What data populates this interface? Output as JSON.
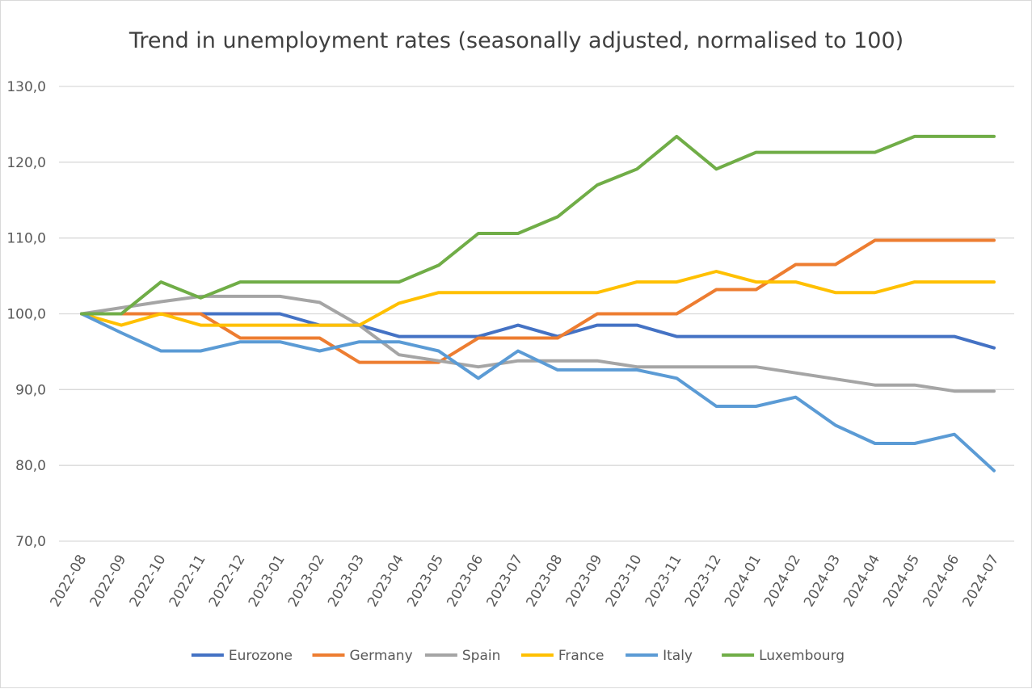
{
  "chart_data": {
    "type": "line",
    "title": "Trend in unemployment rates (seasonally adjusted, normalised to 100)",
    "xlabel": "",
    "ylabel": "",
    "ylim": [
      70,
      130
    ],
    "yticks": [
      "70,0",
      "80,0",
      "90,0",
      "100,0",
      "110,0",
      "120,0",
      "130,0"
    ],
    "ytick_values": [
      70,
      80,
      90,
      100,
      110,
      120,
      130
    ],
    "grid": true,
    "legend_position": "bottom",
    "categories": [
      "2022-08",
      "2022-09",
      "2022-10",
      "2022-11",
      "2022-12",
      "2023-01",
      "2023-02",
      "2023-03",
      "2023-04",
      "2023-05",
      "2023-06",
      "2023-07",
      "2023-08",
      "2023-09",
      "2023-10",
      "2023-11",
      "2023-12",
      "2024-01",
      "2024-02",
      "2024-03",
      "2024-04",
      "2024-05",
      "2024-06",
      "2024-07"
    ],
    "series": [
      {
        "name": "Eurozone",
        "color": "#4472C4",
        "values": [
          100,
          100,
          100,
          100,
          100,
          100,
          98.5,
          98.5,
          97,
          97,
          97,
          98.5,
          97,
          98.5,
          98.5,
          97,
          97,
          97,
          97,
          97,
          97,
          97,
          97,
          95.5
        ]
      },
      {
        "name": "Germany",
        "color": "#ED7D31",
        "values": [
          100,
          100,
          100,
          100,
          96.8,
          96.8,
          96.8,
          93.6,
          93.6,
          93.6,
          96.8,
          96.8,
          96.8,
          100,
          100,
          100,
          103.2,
          103.2,
          106.5,
          106.5,
          109.7,
          109.7,
          109.7,
          109.7
        ]
      },
      {
        "name": "Spain",
        "color": "#A5A5A5",
        "values": [
          100,
          100.8,
          101.6,
          102.3,
          102.3,
          102.3,
          101.5,
          98.5,
          94.6,
          93.8,
          93,
          93.8,
          93.8,
          93.8,
          93,
          93,
          93,
          93,
          92.2,
          91.4,
          90.6,
          90.6,
          89.8,
          89.8
        ]
      },
      {
        "name": "France",
        "color": "#FFC000",
        "values": [
          100,
          98.5,
          100,
          98.5,
          98.5,
          98.5,
          98.5,
          98.5,
          101.4,
          102.8,
          102.8,
          102.8,
          102.8,
          102.8,
          104.2,
          104.2,
          105.6,
          104.2,
          104.2,
          102.8,
          102.8,
          104.2,
          104.2,
          104.2
        ]
      },
      {
        "name": "Italy",
        "color": "#5B9BD5",
        "values": [
          100,
          97.5,
          95.1,
          95.1,
          96.3,
          96.3,
          95.1,
          96.3,
          96.3,
          95.1,
          91.5,
          95.1,
          92.6,
          92.6,
          92.6,
          91.5,
          87.8,
          87.8,
          89,
          85.3,
          82.9,
          82.9,
          84.1,
          79.3
        ]
      },
      {
        "name": "Luxembourg",
        "color": "#70AD47",
        "values": [
          100,
          100,
          104.2,
          102.1,
          104.2,
          104.2,
          104.2,
          104.2,
          104.2,
          106.4,
          110.6,
          110.6,
          112.8,
          117,
          119.1,
          123.4,
          119.1,
          121.3,
          121.3,
          121.3,
          121.3,
          123.4,
          123.4,
          123.4
        ]
      }
    ]
  }
}
